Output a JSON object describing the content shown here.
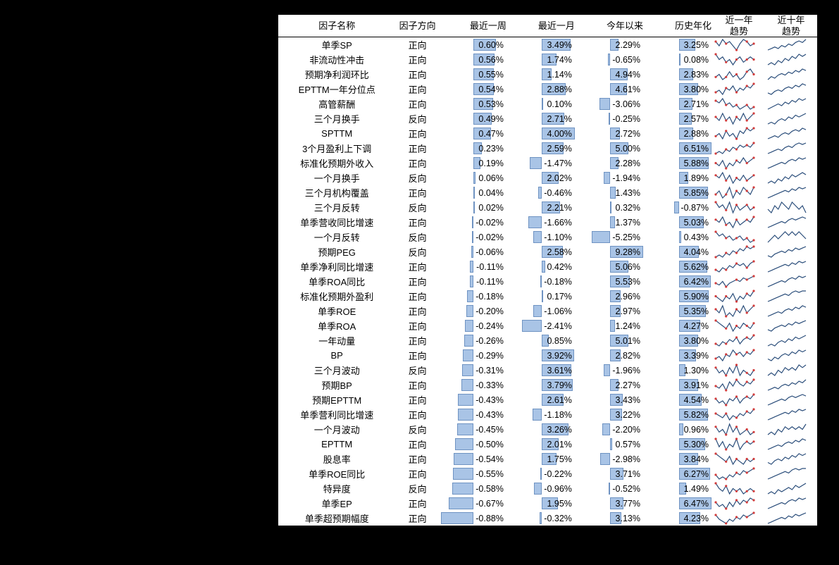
{
  "headers": {
    "name": "因子名称",
    "direction": "因子方向",
    "w1": "最近一周",
    "m1": "最近一月",
    "ytd": "今年以来",
    "hist": "历史年化",
    "trend1y": "近一年\n趋势",
    "trend10y": "近十年\n趋势"
  },
  "bar_fill": "#a9c4e6",
  "bar_border": "#6f93c2",
  "spark_line_color": "#2a4d7a",
  "spark_dot_red": "#d23c3c",
  "max_abs": {
    "w1": 0.88,
    "m1": 4.0,
    "ytd": 9.28,
    "hist": 6.51
  },
  "rows": [
    {
      "name": "单季SP",
      "dir": "正向",
      "w1": 0.6,
      "m1": 3.49,
      "ytd": 2.29,
      "hist": 3.25,
      "s1": [
        6,
        4,
        7,
        5,
        6,
        4,
        2,
        5,
        7,
        6,
        4,
        5
      ],
      "s10": [
        2,
        3,
        4,
        3,
        5,
        4,
        6,
        5,
        7,
        8,
        7,
        9
      ]
    },
    {
      "name": "非流动性冲击",
      "dir": "正向",
      "w1": 0.56,
      "m1": 1.74,
      "ytd": -0.65,
      "hist": 0.08,
      "s1": [
        7,
        5,
        6,
        4,
        5,
        3,
        5,
        6,
        4,
        5,
        6,
        5
      ],
      "s10": [
        3,
        4,
        3,
        5,
        4,
        6,
        5,
        7,
        6,
        8,
        7,
        8
      ]
    },
    {
      "name": "预期净利润环比",
      "dir": "正向",
      "w1": 0.55,
      "m1": 1.14,
      "ytd": 4.94,
      "hist": 2.83,
      "s1": [
        5,
        6,
        4,
        5,
        7,
        5,
        6,
        4,
        5,
        7,
        8,
        6
      ],
      "s10": [
        2,
        4,
        3,
        5,
        6,
        5,
        7,
        6,
        8,
        7,
        9,
        8
      ]
    },
    {
      "name": "EPTTM一年分位点",
      "dir": "正向",
      "w1": 0.54,
      "m1": 2.88,
      "ytd": 4.61,
      "hist": 3.8,
      "s1": [
        4,
        5,
        3,
        6,
        5,
        7,
        4,
        6,
        5,
        7,
        6,
        8
      ],
      "s10": [
        3,
        2,
        4,
        5,
        4,
        6,
        7,
        6,
        8,
        7,
        9,
        8
      ]
    },
    {
      "name": "高管薪酬",
      "dir": "正向",
      "w1": 0.53,
      "m1": 0.1,
      "ytd": -3.06,
      "hist": 2.71,
      "s1": [
        7,
        6,
        8,
        5,
        6,
        4,
        5,
        3,
        4,
        5,
        3,
        4
      ],
      "s10": [
        2,
        3,
        4,
        5,
        4,
        6,
        5,
        7,
        6,
        8,
        7,
        8
      ]
    },
    {
      "name": "三个月换手",
      "dir": "反向",
      "w1": 0.49,
      "m1": 2.71,
      "ytd": -0.25,
      "hist": 2.57,
      "s1": [
        6,
        5,
        7,
        5,
        6,
        4,
        6,
        5,
        7,
        5,
        6,
        7
      ],
      "s10": [
        3,
        4,
        3,
        5,
        6,
        5,
        7,
        6,
        8,
        7,
        8,
        9
      ]
    },
    {
      "name": "SPTTM",
      "dir": "正向",
      "w1": 0.47,
      "m1": 4.0,
      "ytd": 2.72,
      "hist": 2.88,
      "s1": [
        5,
        6,
        4,
        7,
        5,
        6,
        4,
        7,
        6,
        8,
        7,
        8
      ],
      "s10": [
        2,
        3,
        4,
        3,
        5,
        6,
        5,
        7,
        8,
        7,
        9,
        8
      ]
    },
    {
      "name": "3个月盈利上下调",
      "dir": "正向",
      "w1": 0.23,
      "m1": 2.59,
      "ytd": 5.0,
      "hist": 6.51,
      "s1": [
        4,
        5,
        4,
        6,
        5,
        7,
        6,
        8,
        7,
        8,
        7,
        9
      ],
      "s10": [
        2,
        3,
        4,
        5,
        4,
        6,
        7,
        6,
        8,
        9,
        8,
        9
      ]
    },
    {
      "name": "标准化预期外收入",
      "dir": "正向",
      "w1": 0.19,
      "m1": -1.47,
      "ytd": 2.28,
      "hist": 5.88,
      "s1": [
        5,
        4,
        6,
        3,
        5,
        4,
        6,
        5,
        7,
        5,
        6,
        7
      ],
      "s10": [
        2,
        3,
        4,
        5,
        6,
        5,
        7,
        8,
        7,
        9,
        8,
        9
      ]
    },
    {
      "name": "一个月换手",
      "dir": "反向",
      "w1": 0.06,
      "m1": 2.02,
      "ytd": -1.94,
      "hist": 1.89,
      "s1": [
        6,
        5,
        7,
        4,
        6,
        3,
        5,
        4,
        6,
        4,
        5,
        6
      ],
      "s10": [
        3,
        4,
        3,
        5,
        4,
        6,
        5,
        7,
        6,
        7,
        8,
        7
      ]
    },
    {
      "name": "三个月机构覆盖",
      "dir": "正向",
      "w1": 0.04,
      "m1": -0.46,
      "ytd": 1.43,
      "hist": 5.85,
      "s1": [
        5,
        6,
        4,
        5,
        7,
        4,
        6,
        5,
        7,
        6,
        5,
        7
      ],
      "s10": [
        2,
        3,
        4,
        5,
        6,
        7,
        6,
        8,
        7,
        9,
        8,
        9
      ]
    },
    {
      "name": "三个月反转",
      "dir": "反向",
      "w1": 0.02,
      "m1": 2.21,
      "ytd": 0.32,
      "hist": -0.87,
      "s1": [
        7,
        5,
        6,
        4,
        7,
        3,
        6,
        4,
        5,
        6,
        4,
        5
      ],
      "s10": [
        4,
        3,
        5,
        4,
        6,
        5,
        4,
        6,
        5,
        4,
        5,
        3
      ]
    },
    {
      "name": "单季营收同比增速",
      "dir": "正向",
      "w1": -0.02,
      "m1": -1.66,
      "ytd": 1.37,
      "hist": 5.03,
      "s1": [
        6,
        5,
        7,
        4,
        5,
        3,
        6,
        4,
        5,
        6,
        5,
        7
      ],
      "s10": [
        2,
        3,
        4,
        5,
        6,
        5,
        7,
        8,
        7,
        8,
        9,
        8
      ]
    },
    {
      "name": "一个月反转",
      "dir": "反向",
      "w1": -0.02,
      "m1": -1.1,
      "ytd": -5.25,
      "hist": 0.43,
      "s1": [
        7,
        5,
        6,
        4,
        5,
        3,
        4,
        5,
        3,
        4,
        2,
        3
      ],
      "s10": [
        3,
        4,
        5,
        4,
        5,
        6,
        5,
        6,
        5,
        6,
        5,
        4
      ]
    },
    {
      "name": "预期PEG",
      "dir": "反向",
      "w1": -0.06,
      "m1": 2.58,
      "ytd": 9.28,
      "hist": 4.04,
      "s1": [
        4,
        5,
        4,
        6,
        5,
        7,
        6,
        8,
        7,
        9,
        8,
        9
      ],
      "s10": [
        3,
        2,
        4,
        5,
        6,
        5,
        7,
        6,
        8,
        7,
        8,
        9
      ]
    },
    {
      "name": "单季净利同比增速",
      "dir": "正向",
      "w1": -0.11,
      "m1": 0.42,
      "ytd": 5.06,
      "hist": 5.62,
      "s1": [
        5,
        4,
        6,
        5,
        7,
        6,
        8,
        7,
        8,
        6,
        8,
        9
      ],
      "s10": [
        2,
        3,
        4,
        5,
        6,
        7,
        6,
        8,
        7,
        9,
        8,
        9
      ]
    },
    {
      "name": "单季ROA同比",
      "dir": "正向",
      "w1": -0.11,
      "m1": -0.18,
      "ytd": 5.53,
      "hist": 6.42,
      "s1": [
        5,
        4,
        6,
        3,
        5,
        6,
        7,
        6,
        8,
        7,
        8,
        9
      ],
      "s10": [
        2,
        3,
        4,
        5,
        6,
        5,
        7,
        8,
        7,
        9,
        8,
        9
      ]
    },
    {
      "name": "标准化预期外盈利",
      "dir": "正向",
      "w1": -0.18,
      "m1": 0.17,
      "ytd": 2.96,
      "hist": 5.9,
      "s1": [
        6,
        5,
        4,
        6,
        5,
        7,
        4,
        6,
        5,
        7,
        6,
        8
      ],
      "s10": [
        2,
        3,
        4,
        5,
        6,
        7,
        6,
        8,
        9,
        8,
        9,
        9
      ]
    },
    {
      "name": "单季ROE",
      "dir": "正向",
      "w1": -0.2,
      "m1": -1.06,
      "ytd": 2.97,
      "hist": 5.35,
      "s1": [
        6,
        5,
        7,
        4,
        5,
        4,
        6,
        5,
        7,
        5,
        6,
        7
      ],
      "s10": [
        2,
        3,
        4,
        5,
        4,
        6,
        7,
        6,
        8,
        7,
        9,
        8
      ]
    },
    {
      "name": "单季ROA",
      "dir": "正向",
      "w1": -0.24,
      "m1": -2.41,
      "ytd": 1.24,
      "hist": 4.27,
      "s1": [
        7,
        6,
        5,
        4,
        6,
        3,
        5,
        4,
        6,
        5,
        4,
        6
      ],
      "s10": [
        3,
        2,
        4,
        5,
        6,
        5,
        7,
        6,
        8,
        7,
        8,
        9
      ]
    },
    {
      "name": "一年动量",
      "dir": "正向",
      "w1": -0.26,
      "m1": 0.85,
      "ytd": 5.01,
      "hist": 3.8,
      "s1": [
        5,
        4,
        6,
        5,
        7,
        6,
        8,
        5,
        7,
        8,
        7,
        9
      ],
      "s10": [
        3,
        4,
        3,
        5,
        6,
        5,
        7,
        6,
        8,
        7,
        8,
        9
      ]
    },
    {
      "name": "BP",
      "dir": "正向",
      "w1": -0.29,
      "m1": 3.92,
      "ytd": 2.82,
      "hist": 3.39,
      "s1": [
        4,
        5,
        3,
        6,
        5,
        8,
        6,
        7,
        5,
        7,
        6,
        8
      ],
      "s10": [
        3,
        2,
        4,
        3,
        5,
        6,
        5,
        7,
        6,
        8,
        7,
        8
      ]
    },
    {
      "name": "三个月波动",
      "dir": "反向",
      "w1": -0.31,
      "m1": 3.61,
      "ytd": -1.96,
      "hist": 1.3,
      "s1": [
        7,
        5,
        6,
        4,
        7,
        5,
        8,
        4,
        6,
        5,
        4,
        6
      ],
      "s10": [
        3,
        4,
        3,
        5,
        4,
        6,
        5,
        6,
        5,
        7,
        6,
        7
      ]
    },
    {
      "name": "预期BP",
      "dir": "正向",
      "w1": -0.33,
      "m1": 3.79,
      "ytd": 2.27,
      "hist": 3.91,
      "s1": [
        5,
        4,
        6,
        3,
        7,
        5,
        8,
        6,
        5,
        7,
        6,
        8
      ],
      "s10": [
        2,
        3,
        4,
        3,
        5,
        6,
        5,
        7,
        6,
        8,
        7,
        9
      ]
    },
    {
      "name": "预期EPTTM",
      "dir": "正向",
      "w1": -0.43,
      "m1": 2.61,
      "ytd": 3.43,
      "hist": 4.54,
      "s1": [
        6,
        4,
        5,
        3,
        6,
        5,
        7,
        4,
        6,
        7,
        6,
        8
      ],
      "s10": [
        2,
        3,
        4,
        5,
        6,
        5,
        7,
        8,
        7,
        8,
        9,
        8
      ]
    },
    {
      "name": "单季营利同比增速",
      "dir": "正向",
      "w1": -0.43,
      "m1": -1.18,
      "ytd": 3.22,
      "hist": 5.82,
      "s1": [
        6,
        5,
        4,
        6,
        3,
        5,
        4,
        6,
        5,
        7,
        6,
        8
      ],
      "s10": [
        2,
        3,
        4,
        5,
        6,
        7,
        6,
        8,
        7,
        9,
        8,
        9
      ]
    },
    {
      "name": "一个月波动",
      "dir": "反向",
      "w1": -0.45,
      "m1": 3.26,
      "ytd": -2.2,
      "hist": 0.96,
      "s1": [
        7,
        5,
        6,
        4,
        8,
        5,
        7,
        4,
        5,
        6,
        4,
        5
      ],
      "s10": [
        3,
        4,
        3,
        5,
        4,
        6,
        5,
        6,
        5,
        6,
        5,
        7
      ]
    },
    {
      "name": "EPTTM",
      "dir": "正向",
      "w1": -0.5,
      "m1": 2.01,
      "ytd": 0.57,
      "hist": 5.3,
      "s1": [
        7,
        4,
        6,
        3,
        5,
        4,
        7,
        3,
        5,
        6,
        5,
        6
      ],
      "s10": [
        2,
        3,
        4,
        5,
        4,
        6,
        7,
        6,
        8,
        7,
        9,
        8
      ]
    },
    {
      "name": "股息率",
      "dir": "正向",
      "w1": -0.54,
      "m1": 1.75,
      "ytd": -2.98,
      "hist": 3.84,
      "s1": [
        7,
        6,
        5,
        4,
        6,
        3,
        5,
        4,
        3,
        5,
        4,
        5
      ],
      "s10": [
        3,
        2,
        4,
        5,
        4,
        6,
        5,
        7,
        6,
        8,
        7,
        8
      ]
    },
    {
      "name": "单季ROE同比",
      "dir": "正向",
      "w1": -0.55,
      "m1": -0.22,
      "ytd": 3.71,
      "hist": 6.27,
      "s1": [
        6,
        4,
        5,
        4,
        6,
        5,
        7,
        6,
        8,
        7,
        8,
        9
      ],
      "s10": [
        2,
        3,
        4,
        5,
        6,
        7,
        6,
        8,
        9,
        8,
        9,
        9
      ]
    },
    {
      "name": "特异度",
      "dir": "反向",
      "w1": -0.58,
      "m1": -0.96,
      "ytd": -0.52,
      "hist": 1.49,
      "s1": [
        7,
        5,
        4,
        6,
        3,
        5,
        4,
        5,
        3,
        4,
        5,
        4
      ],
      "s10": [
        3,
        4,
        3,
        5,
        4,
        5,
        6,
        5,
        7,
        6,
        7,
        8
      ]
    },
    {
      "name": "单季EP",
      "dir": "正向",
      "w1": -0.67,
      "m1": 1.95,
      "ytd": 3.77,
      "hist": 6.47,
      "s1": [
        6,
        4,
        5,
        3,
        6,
        4,
        7,
        5,
        7,
        6,
        8,
        7
      ],
      "s10": [
        2,
        3,
        4,
        5,
        6,
        5,
        7,
        8,
        7,
        9,
        8,
        9
      ]
    },
    {
      "name": "单季超预期幅度",
      "dir": "正向",
      "w1": -0.88,
      "m1": -0.32,
      "ytd": 3.13,
      "hist": 4.23,
      "s1": [
        7,
        5,
        4,
        3,
        5,
        4,
        6,
        5,
        7,
        6,
        7,
        8
      ],
      "s10": [
        2,
        3,
        4,
        5,
        6,
        5,
        7,
        6,
        8,
        7,
        8,
        9
      ]
    }
  ]
}
